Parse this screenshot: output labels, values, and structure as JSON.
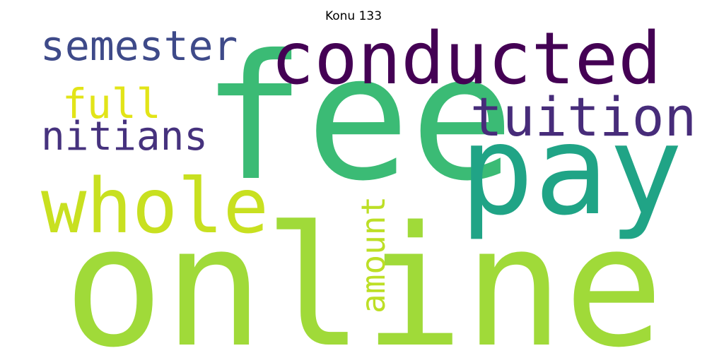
{
  "title": "Konu 133",
  "words": [
    {
      "text": "online",
      "color": "#a0da39"
    },
    {
      "text": "fee",
      "color": "#3bbb75"
    },
    {
      "text": "pay",
      "color": "#20a486"
    },
    {
      "text": "conducted",
      "color": "#440154"
    },
    {
      "text": "whole",
      "color": "#c8e020"
    },
    {
      "text": "tuition",
      "color": "#472c7a"
    },
    {
      "text": "semester",
      "color": "#3e4a89"
    },
    {
      "text": "nitians",
      "color": "#46327e"
    },
    {
      "text": "full",
      "color": "#e2e418"
    },
    {
      "text": "amount",
      "color": "#bddf26"
    }
  ]
}
